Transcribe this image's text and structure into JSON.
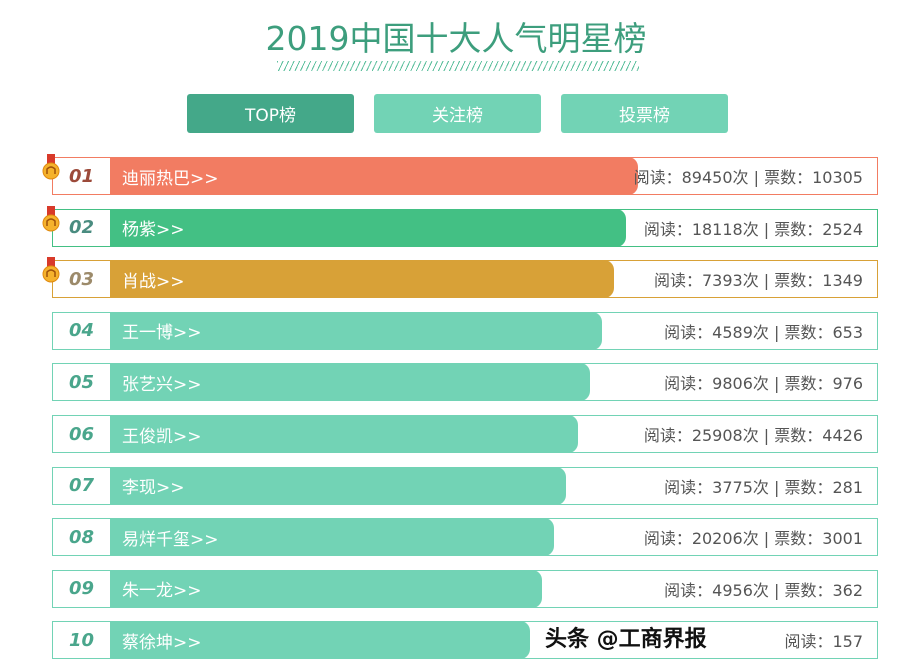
{
  "title": "2019中国十大人气明星榜",
  "tabs": [
    "TOP榜",
    "关注榜",
    "投票榜"
  ],
  "colors": {
    "accent": "#44a889",
    "rank1": "#f27c62",
    "rank2": "#43c084",
    "rank3": "#d8a137",
    "default": "#72d3b5"
  },
  "rows": [
    {
      "rank": "01",
      "name": "迪丽热巴>>",
      "stats": "阅读：89450次 | 票数：10305"
    },
    {
      "rank": "02",
      "name": "杨紫>>",
      "stats": "阅读：18118次 | 票数：2524"
    },
    {
      "rank": "03",
      "name": "肖战>>",
      "stats": "阅读：7393次 | 票数：1349"
    },
    {
      "rank": "04",
      "name": "王一博>>",
      "stats": "阅读：4589次 | 票数：653"
    },
    {
      "rank": "05",
      "name": "张艺兴>>",
      "stats": "阅读：9806次 | 票数：976"
    },
    {
      "rank": "06",
      "name": "王俊凯>>",
      "stats": "阅读：25908次 | 票数：4426"
    },
    {
      "rank": "07",
      "name": "李现>>",
      "stats": "阅读：3775次 | 票数：281"
    },
    {
      "rank": "08",
      "name": "易烊千玺>>",
      "stats": "阅读：20206次 | 票数：3001"
    },
    {
      "rank": "09",
      "name": "朱一龙>>",
      "stats": "阅读：4956次 | 票数：362"
    },
    {
      "rank": "10",
      "name": "蔡徐坤>>",
      "stats": "阅读：157"
    }
  ],
  "watermark": "头条 @工商界报"
}
